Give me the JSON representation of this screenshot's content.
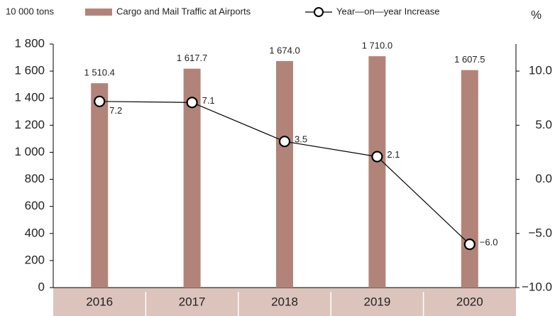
{
  "chart_data": {
    "type": "bar_line",
    "y_unit": "10 000 tons",
    "y2_unit": "%",
    "categories": [
      "2016",
      "2017",
      "2018",
      "2019",
      "2020"
    ],
    "series": [
      {
        "name": "Cargo and Mail Traffic at Airports",
        "type": "bar",
        "color": "#b28479",
        "values": [
          1510.4,
          1617.7,
          1674.0,
          1710.0,
          1607.5
        ],
        "value_labels": [
          "1 510.4",
          "1 617.7",
          "1 674.0",
          "1 710.0",
          "1 607.5"
        ]
      },
      {
        "name": "Year—on—year Increase",
        "type": "line",
        "axis": "y2",
        "color": "#000000",
        "values": [
          7.2,
          7.1,
          3.5,
          2.1,
          -6.0
        ],
        "value_labels": [
          "7.2",
          "7.1",
          "3.5",
          "2.1",
          "−6.0"
        ]
      }
    ],
    "ylim": [
      0,
      1800
    ],
    "yticks": [
      0,
      200,
      400,
      600,
      800,
      {
        "value": 1000,
        "label": "1 000"
      },
      {
        "value": 1200,
        "label": "1 200"
      },
      {
        "value": 1400,
        "label": "1 400"
      },
      {
        "value": 1600,
        "label": "1 600"
      },
      {
        "value": 1800,
        "label": "1 800"
      }
    ],
    "y2lim": [
      -10,
      12.5
    ],
    "y2ticks": [
      {
        "value": -10,
        "label": "−10.0"
      },
      {
        "value": -5,
        "label": "−5.0"
      },
      {
        "value": 0,
        "label": "0.0"
      },
      {
        "value": 5,
        "label": "5.0"
      },
      {
        "value": 10,
        "label": "10.0"
      }
    ]
  }
}
